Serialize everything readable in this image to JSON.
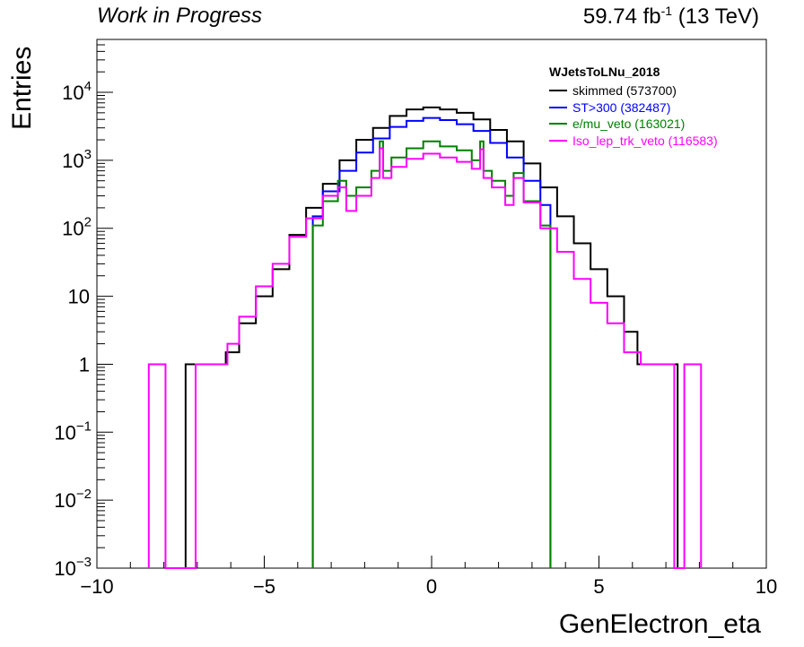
{
  "header": {
    "left": "Work in Progress",
    "lumi_prefix": "59.74 fb",
    "lumi_exp": "-1",
    "lumi_suffix": " (13 TeV)"
  },
  "chart_data": {
    "type": "line",
    "style": "step-histogram",
    "xlabel": "GenElectron_eta",
    "ylabel": "Entries",
    "xlim": [
      -10,
      10
    ],
    "ylim": [
      0.001,
      60000
    ],
    "yscale": "log",
    "grid": false,
    "legend_placement": "top-right",
    "legend_title": "WJetsToLNu_2018",
    "x_ticks": [
      "−10",
      "−5",
      "0",
      "5",
      "10"
    ],
    "y_ticks": [
      {
        "base": "10",
        "exp": "−3",
        "value": 0.001
      },
      {
        "base": "10",
        "exp": "−2",
        "value": 0.01
      },
      {
        "base": "10",
        "exp": "−1",
        "value": 0.1
      },
      {
        "base": "1",
        "exp": "",
        "value": 1
      },
      {
        "base": "10",
        "exp": "",
        "value": 10
      },
      {
        "base": "10",
        "exp": "2",
        "value": 100
      },
      {
        "base": "10",
        "exp": "3",
        "value": 1000
      },
      {
        "base": "10",
        "exp": "4",
        "value": 10000
      }
    ],
    "series": [
      {
        "name": "skimmed (573700)",
        "color": "#000000",
        "points": [
          [
            -7.3,
            1
          ],
          [
            -6.9,
            1
          ],
          [
            -6.6,
            1
          ],
          [
            -6.3,
            1
          ],
          [
            -6.0,
            1.5
          ],
          [
            -5.5,
            4
          ],
          [
            -5.0,
            10
          ],
          [
            -4.5,
            25
          ],
          [
            -4.0,
            80
          ],
          [
            -3.5,
            200
          ],
          [
            -3.0,
            450
          ],
          [
            -2.5,
            1000
          ],
          [
            -2.0,
            2000
          ],
          [
            -1.5,
            3000
          ],
          [
            -1.0,
            4500
          ],
          [
            -0.5,
            5600
          ],
          [
            0.0,
            6000
          ],
          [
            0.5,
            5600
          ],
          [
            1.0,
            5000
          ],
          [
            1.5,
            4000
          ],
          [
            2.0,
            2800
          ],
          [
            2.5,
            1900
          ],
          [
            3.0,
            900
          ],
          [
            3.5,
            400
          ],
          [
            4.0,
            150
          ],
          [
            4.5,
            60
          ],
          [
            5.0,
            25
          ],
          [
            5.5,
            10
          ],
          [
            6.0,
            3
          ],
          [
            6.3,
            1
          ],
          [
            6.6,
            1
          ],
          [
            7.0,
            1
          ],
          [
            7.3,
            1
          ]
        ]
      },
      {
        "name": "ST>300 (382487)",
        "color": "#0000ff",
        "points": [
          [
            -3.5,
            150
          ],
          [
            -3.0,
            350
          ],
          [
            -2.5,
            700
          ],
          [
            -2.0,
            1300
          ],
          [
            -1.5,
            2100
          ],
          [
            -1.0,
            3100
          ],
          [
            -0.5,
            3800
          ],
          [
            0.0,
            4200
          ],
          [
            0.5,
            3900
          ],
          [
            1.0,
            3400
          ],
          [
            1.5,
            2700
          ],
          [
            2.0,
            1800
          ],
          [
            2.5,
            1100
          ],
          [
            3.0,
            500
          ],
          [
            3.5,
            220
          ]
        ]
      },
      {
        "name": "e/mu_veto (163021)",
        "color": "#008000",
        "points": [
          [
            -3.5,
            110
          ],
          [
            -3.0,
            250
          ],
          [
            -2.6,
            500
          ],
          [
            -2.5,
            300
          ],
          [
            -2.0,
            400
          ],
          [
            -1.6,
            700
          ],
          [
            -1.5,
            1900
          ],
          [
            -1.4,
            700
          ],
          [
            -1.0,
            1100
          ],
          [
            -0.5,
            1500
          ],
          [
            0.0,
            1900
          ],
          [
            0.5,
            1600
          ],
          [
            1.0,
            1400
          ],
          [
            1.4,
            1000
          ],
          [
            1.5,
            1900
          ],
          [
            1.6,
            700
          ],
          [
            2.0,
            500
          ],
          [
            2.4,
            300
          ],
          [
            2.5,
            650
          ],
          [
            3.0,
            250
          ],
          [
            3.5,
            110
          ]
        ]
      },
      {
        "name": "Iso_lep_trk_veto (116583)",
        "color": "#ff00ff",
        "points": [
          [
            -8.4,
            1
          ],
          [
            -8.2,
            1
          ],
          [
            -6.8,
            1
          ],
          [
            -6.5,
            1
          ],
          [
            -6.2,
            1
          ],
          [
            -6.0,
            2
          ],
          [
            -5.5,
            5
          ],
          [
            -5.0,
            14
          ],
          [
            -4.5,
            30
          ],
          [
            -4.0,
            75
          ],
          [
            -3.5,
            140
          ],
          [
            -3.0,
            300
          ],
          [
            -2.6,
            400
          ],
          [
            -2.5,
            180
          ],
          [
            -2.0,
            300
          ],
          [
            -1.6,
            550
          ],
          [
            -1.5,
            1500
          ],
          [
            -1.4,
            550
          ],
          [
            -1.0,
            800
          ],
          [
            -0.5,
            1050
          ],
          [
            0.0,
            1250
          ],
          [
            0.5,
            1100
          ],
          [
            1.0,
            950
          ],
          [
            1.4,
            750
          ],
          [
            1.5,
            1450
          ],
          [
            1.6,
            550
          ],
          [
            2.0,
            400
          ],
          [
            2.4,
            220
          ],
          [
            2.5,
            550
          ],
          [
            3.0,
            240
          ],
          [
            3.5,
            100
          ],
          [
            4.0,
            45
          ],
          [
            4.5,
            18
          ],
          [
            5.0,
            8
          ],
          [
            5.5,
            4
          ],
          [
            6.0,
            1.5
          ],
          [
            6.5,
            1
          ],
          [
            7.0,
            1
          ],
          [
            7.8,
            1
          ],
          [
            8.0,
            1
          ]
        ]
      }
    ]
  }
}
